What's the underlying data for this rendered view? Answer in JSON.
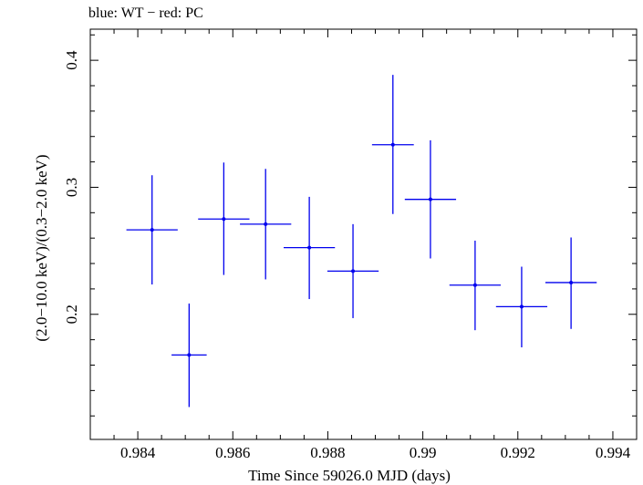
{
  "chart_data": {
    "type": "scatter",
    "title": "blue: WT − red: PC",
    "xlabel": "Time Since 59026.0 MJD (days)",
    "ylabel": "(2.0−10.0 keV)/(0.3−2.0 keV)",
    "xlim": [
      0.983,
      0.9945
    ],
    "ylim": [
      0.1015,
      0.4245
    ],
    "xticks": [
      0.984,
      0.986,
      0.988,
      0.99,
      0.992,
      0.994
    ],
    "xtick_labels": [
      "0.984",
      "0.986",
      "0.988",
      "0.99",
      "0.992",
      "0.994"
    ],
    "yticks": [
      0.2,
      0.3,
      0.4
    ],
    "ytick_labels": [
      "0.2",
      "0.3",
      "0.4"
    ],
    "grid": false,
    "color": "#0000ee",
    "series": [
      {
        "points": [
          {
            "x": 0.9843,
            "y": 0.2665,
            "xerr": 0.00054,
            "ylo": 0.2235,
            "yhi": 0.3095
          },
          {
            "x": 0.98508,
            "y": 0.168,
            "xerr": 0.00037,
            "ylo": 0.127,
            "yhi": 0.2085
          },
          {
            "x": 0.98581,
            "y": 0.275,
            "xerr": 0.00054,
            "ylo": 0.231,
            "yhi": 0.3195
          },
          {
            "x": 0.98669,
            "y": 0.271,
            "xerr": 0.00054,
            "ylo": 0.2275,
            "yhi": 0.3145
          },
          {
            "x": 0.98761,
            "y": 0.2525,
            "xerr": 0.00054,
            "ylo": 0.212,
            "yhi": 0.2925
          },
          {
            "x": 0.98853,
            "y": 0.234,
            "xerr": 0.00054,
            "ylo": 0.197,
            "yhi": 0.271
          },
          {
            "x": 0.98937,
            "y": 0.3335,
            "xerr": 0.00044,
            "ylo": 0.279,
            "yhi": 0.3885
          },
          {
            "x": 0.99016,
            "y": 0.2905,
            "xerr": 0.00054,
            "ylo": 0.244,
            "yhi": 0.337
          },
          {
            "x": 0.9911,
            "y": 0.223,
            "xerr": 0.00054,
            "ylo": 0.1875,
            "yhi": 0.258
          },
          {
            "x": 0.99208,
            "y": 0.206,
            "xerr": 0.00054,
            "ylo": 0.174,
            "yhi": 0.2375
          },
          {
            "x": 0.99312,
            "y": 0.225,
            "xerr": 0.00054,
            "ylo": 0.1885,
            "yhi": 0.2605
          }
        ]
      }
    ]
  }
}
